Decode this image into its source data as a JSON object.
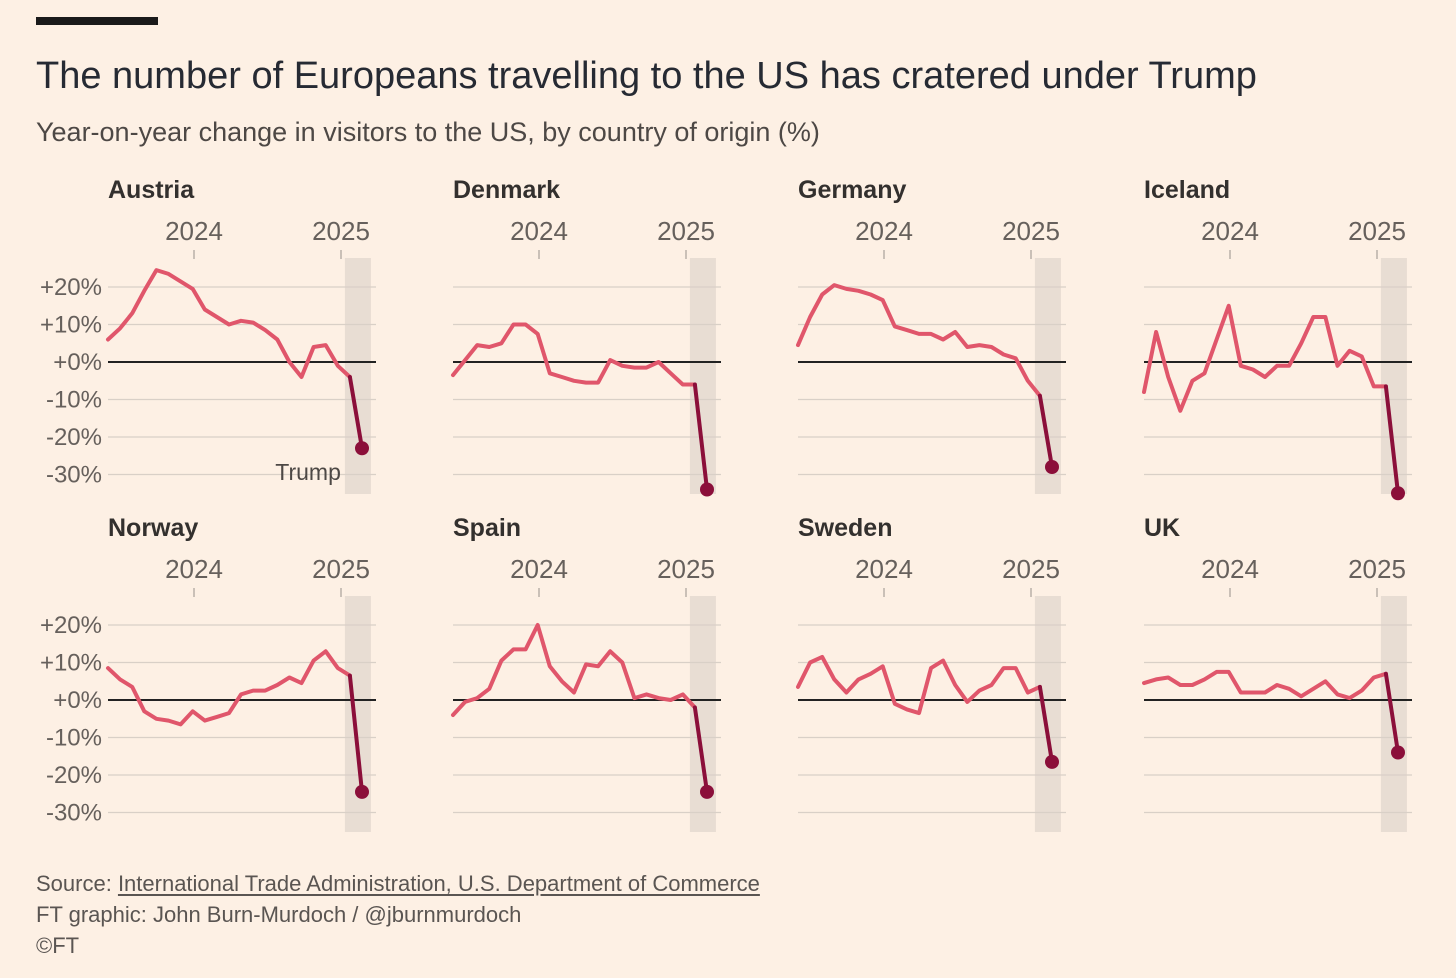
{
  "header": {
    "title": "The number of Europeans travelling to the US has cratered under Trump",
    "subtitle": "Year-on-year change in visitors to the US, by country of origin (%)"
  },
  "footer": {
    "source_prefix": "Source: ",
    "source_link": "International Trade Administration, U.S. Department of Commerce",
    "credit": "FT graphic: John Burn-Murdoch / @jburnmurdoch",
    "copyright": "©FT"
  },
  "colors": {
    "background": "#fdf0e4",
    "line": "#e0566b",
    "trump_line": "#8b0f3a",
    "trump_band": "#e8ddd3",
    "grid": "#d9d0c7",
    "zero_line": "#222222"
  },
  "chart_data": {
    "type": "line",
    "layout": "small-multiples",
    "x_tick_labels": [
      "2024",
      "2025"
    ],
    "y_tick_labels": [
      "+20%",
      "+10%",
      "+0%",
      "-10%",
      "-20%",
      "-30%"
    ],
    "y_ticks": [
      20,
      10,
      0,
      -10,
      -20,
      -30
    ],
    "ylim": [
      -35,
      26
    ],
    "annotation": "Trump",
    "series": [
      {
        "name": "Austria",
        "values": [
          6,
          9,
          13,
          19,
          24.5,
          23.5,
          21.5,
          19.5,
          14,
          12,
          10,
          11,
          10.5,
          8.5,
          6,
          0,
          -4,
          4,
          4.5,
          -1,
          -4,
          -23
        ]
      },
      {
        "name": "Denmark",
        "values": [
          -3.5,
          0.5,
          4.5,
          4,
          5,
          10,
          10,
          7.5,
          -3,
          -4,
          -5,
          -5.5,
          -5.5,
          0.5,
          -1,
          -1.5,
          -1.5,
          0,
          -3,
          -6,
          -6,
          -34
        ]
      },
      {
        "name": "Germany",
        "values": [
          4.5,
          12,
          18,
          20.5,
          19.5,
          19,
          18,
          16.5,
          9.5,
          8.5,
          7.5,
          7.5,
          6,
          8,
          4,
          4.5,
          4,
          2,
          1,
          -5,
          -9,
          -28
        ]
      },
      {
        "name": "Iceland",
        "values": [
          -8,
          8,
          -4,
          -13,
          -5,
          -3,
          6,
          15,
          -1,
          -2,
          -4,
          -1,
          -1,
          5,
          12,
          12,
          -1,
          3,
          1.5,
          -6.5,
          -6.5,
          -35
        ]
      },
      {
        "name": "Norway",
        "values": [
          8.5,
          5.5,
          3.5,
          -3,
          -5,
          -5.5,
          -6.5,
          -3,
          -5.5,
          -4.5,
          -3.5,
          1.5,
          2.5,
          2.5,
          4,
          6,
          4.5,
          10.5,
          13,
          8.5,
          6.5,
          -24.5
        ]
      },
      {
        "name": "Spain",
        "values": [
          -4,
          -0.5,
          0.5,
          3,
          10.5,
          13.5,
          13.5,
          20,
          9,
          5,
          2,
          9.5,
          9,
          13,
          10,
          0.5,
          1.5,
          0.5,
          0,
          1.5,
          -2,
          -24.5
        ]
      },
      {
        "name": "Sweden",
        "values": [
          3.5,
          10,
          11.5,
          5.5,
          2,
          5.5,
          7,
          9,
          -1,
          -2.5,
          -3.5,
          8.5,
          10.5,
          4,
          -0.5,
          2.5,
          4,
          8.5,
          8.5,
          2,
          3.5,
          -16.5
        ]
      },
      {
        "name": "UK",
        "values": [
          4.5,
          5.5,
          6,
          4,
          4,
          5.5,
          7.5,
          7.5,
          2,
          2,
          2,
          4,
          3,
          1,
          3,
          5,
          1.5,
          0.5,
          2.5,
          6,
          7,
          -14
        ]
      }
    ]
  }
}
